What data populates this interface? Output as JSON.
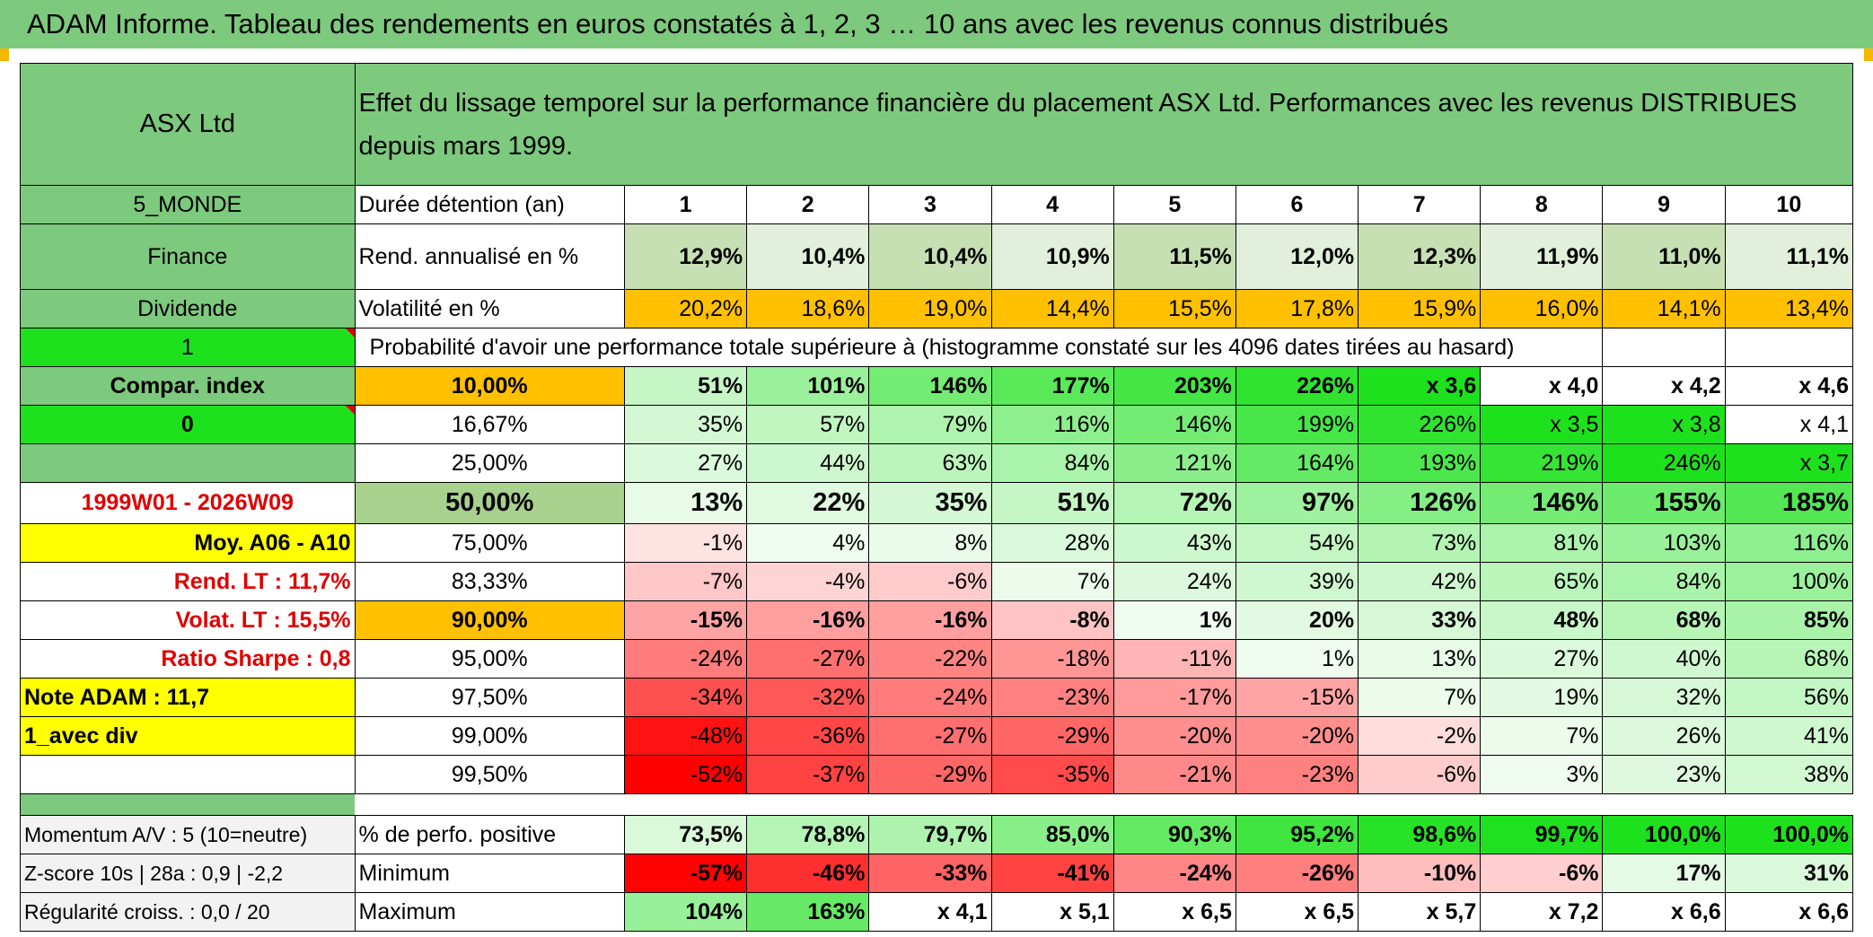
{
  "header": {
    "title": "ADAM Informe. Tableau des rendements en euros constatés à 1, 2, 3 … 10 ans avec les revenus connus distribués"
  },
  "info": {
    "name": "ASX Ltd",
    "description": "Effet du lissage temporel sur la performance financière du placement ASX Ltd. Performances avec les revenus DISTRIBUES depuis mars 1999.",
    "region": "5_MONDE",
    "sector": "Finance",
    "type": "Dividende",
    "flag1": "1",
    "compar_label": "Compar. index",
    "flag2": "0",
    "period": "1999W01 - 2026W09",
    "moy": "Moy. A06 - A10",
    "rend_lt": "Rend. LT :   11,7%",
    "volat_lt": "Volat. LT :   15,5%",
    "sharpe": "Ratio Sharpe :   0,8",
    "note": "Note ADAM : 11,7",
    "avec_div": "1_avec div",
    "momentum": "Momentum A/V : 5 (10=neutre)",
    "zscore": "Z-score 10s | 28a : 0,9 | -2,2",
    "regularite": "Régularité croiss. : 0,0 / 20"
  },
  "table": {
    "duration_label": "Durée détention (an)",
    "years": [
      "1",
      "2",
      "3",
      "4",
      "5",
      "6",
      "7",
      "8",
      "9",
      "10"
    ],
    "rend_label": "Rend. annualisé en %",
    "rend": [
      "12,9%",
      "10,4%",
      "10,4%",
      "10,9%",
      "11,5%",
      "12,0%",
      "12,3%",
      "11,9%",
      "11,0%",
      "11,1%"
    ],
    "vol_label": "Volatilité en %",
    "vol": [
      "20,2%",
      "18,6%",
      "19,0%",
      "14,4%",
      "15,5%",
      "17,8%",
      "15,9%",
      "16,0%",
      "14,1%",
      "13,4%"
    ],
    "prob_label": "Probabilité d'avoir une performance totale supérieure à (histogramme constaté sur les 4096 dates tirées au hasard)",
    "quantiles": [
      {
        "p": "10,00%",
        "v": [
          "51%",
          "101%",
          "146%",
          "177%",
          "203%",
          "226%",
          "x 3,6",
          "x 4,0",
          "x 4,2",
          "x 4,6"
        ]
      },
      {
        "p": "16,67%",
        "v": [
          "35%",
          "57%",
          "79%",
          "116%",
          "146%",
          "199%",
          "226%",
          "x 3,5",
          "x 3,8",
          "x 4,1"
        ]
      },
      {
        "p": "25,00%",
        "v": [
          "27%",
          "44%",
          "63%",
          "84%",
          "121%",
          "164%",
          "193%",
          "219%",
          "246%",
          "x 3,7"
        ]
      },
      {
        "p": "50,00%",
        "v": [
          "13%",
          "22%",
          "35%",
          "51%",
          "72%",
          "97%",
          "126%",
          "146%",
          "155%",
          "185%"
        ]
      },
      {
        "p": "75,00%",
        "v": [
          "-1%",
          "4%",
          "8%",
          "28%",
          "43%",
          "54%",
          "73%",
          "81%",
          "103%",
          "116%"
        ]
      },
      {
        "p": "83,33%",
        "v": [
          "-7%",
          "-4%",
          "-6%",
          "7%",
          "24%",
          "39%",
          "42%",
          "65%",
          "84%",
          "100%"
        ]
      },
      {
        "p": "90,00%",
        "v": [
          "-15%",
          "-16%",
          "-16%",
          "-8%",
          "1%",
          "20%",
          "33%",
          "48%",
          "68%",
          "85%"
        ]
      },
      {
        "p": "95,00%",
        "v": [
          "-24%",
          "-27%",
          "-22%",
          "-18%",
          "-11%",
          "1%",
          "13%",
          "27%",
          "40%",
          "68%"
        ]
      },
      {
        "p": "97,50%",
        "v": [
          "-34%",
          "-32%",
          "-24%",
          "-23%",
          "-17%",
          "-15%",
          "7%",
          "19%",
          "32%",
          "56%"
        ]
      },
      {
        "p": "99,00%",
        "v": [
          "-48%",
          "-36%",
          "-27%",
          "-29%",
          "-20%",
          "-20%",
          "-2%",
          "7%",
          "26%",
          "41%"
        ]
      },
      {
        "p": "99,50%",
        "v": [
          "-52%",
          "-37%",
          "-29%",
          "-35%",
          "-21%",
          "-23%",
          "-6%",
          "3%",
          "23%",
          "38%"
        ]
      }
    ],
    "pos_label": "% de perfo. positive",
    "pos": [
      "73,5%",
      "78,8%",
      "79,7%",
      "85,0%",
      "90,3%",
      "95,2%",
      "98,6%",
      "99,7%",
      "100,0%",
      "100,0%"
    ],
    "min_label": "Minimum",
    "min": [
      "-57%",
      "-46%",
      "-33%",
      "-41%",
      "-24%",
      "-26%",
      "-10%",
      "-6%",
      "17%",
      "31%"
    ],
    "max_label": "Maximum",
    "max": [
      "104%",
      "163%",
      "x 4,1",
      "x 5,1",
      "x 6,5",
      "x 6,5",
      "x 5,7",
      "x 7,2",
      "x 6,6",
      "x 6,6"
    ]
  }
}
